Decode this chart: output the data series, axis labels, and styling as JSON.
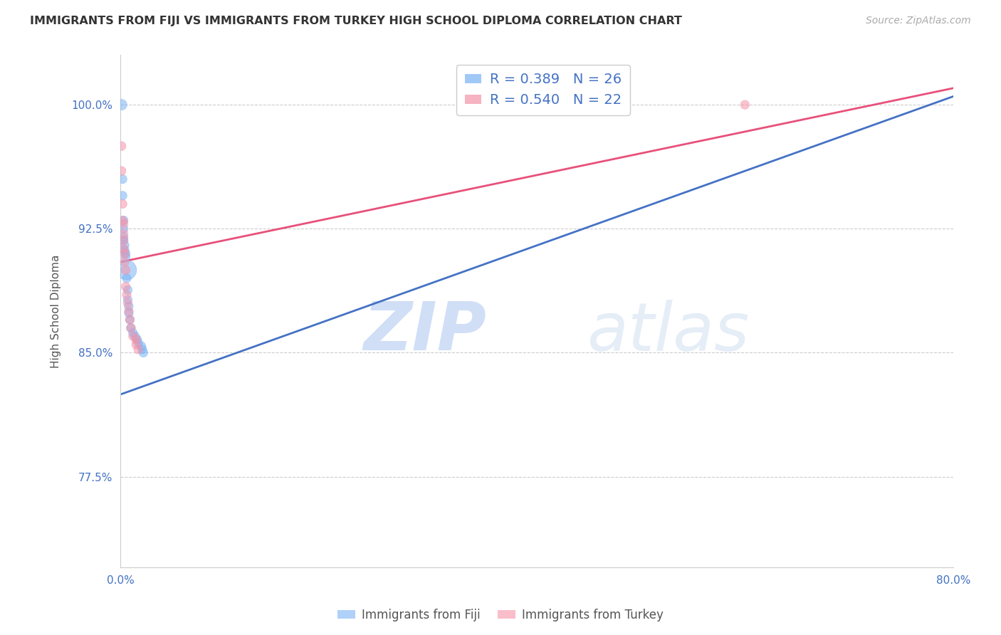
{
  "title": "IMMIGRANTS FROM FIJI VS IMMIGRANTS FROM TURKEY HIGH SCHOOL DIPLOMA CORRELATION CHART",
  "source": "Source: ZipAtlas.com",
  "ylabel": "High School Diploma",
  "xlabel": "",
  "x_min": 0.0,
  "x_max": 0.8,
  "y_min": 0.72,
  "y_max": 1.03,
  "x_ticks": [
    0.0,
    0.1,
    0.2,
    0.3,
    0.4,
    0.5,
    0.6,
    0.7,
    0.8
  ],
  "x_tick_labels": [
    "0.0%",
    "",
    "",
    "",
    "",
    "",
    "",
    "",
    "80.0%"
  ],
  "y_ticks": [
    0.775,
    0.85,
    0.925,
    1.0
  ],
  "y_tick_labels": [
    "77.5%",
    "85.0%",
    "92.5%",
    "100.0%"
  ],
  "watermark_zip": "ZIP",
  "watermark_atlas": "atlas",
  "fiji_color": "#7ab3f5",
  "turkey_color": "#f593a8",
  "fiji_R": 0.389,
  "fiji_N": 26,
  "turkey_R": 0.54,
  "turkey_N": 22,
  "fiji_line_color": "#4472c4",
  "turkey_line_color": "#e8507a",
  "fiji_scatter_x": [
    0.001,
    0.002,
    0.002,
    0.003,
    0.003,
    0.003,
    0.003,
    0.004,
    0.004,
    0.005,
    0.005,
    0.006,
    0.006,
    0.007,
    0.007,
    0.008,
    0.008,
    0.009,
    0.01,
    0.012,
    0.014,
    0.016,
    0.017,
    0.02,
    0.021,
    0.022
  ],
  "fiji_scatter_y": [
    1.0,
    0.955,
    0.945,
    0.93,
    0.925,
    0.92,
    0.918,
    0.915,
    0.912,
    0.91,
    0.908,
    0.9,
    0.895,
    0.888,
    0.882,
    0.878,
    0.874,
    0.87,
    0.865,
    0.862,
    0.86,
    0.858,
    0.856,
    0.854,
    0.852,
    0.85
  ],
  "fiji_scatter_sizes": [
    120,
    80,
    80,
    80,
    80,
    80,
    80,
    80,
    80,
    80,
    80,
    400,
    80,
    80,
    80,
    80,
    80,
    80,
    80,
    80,
    80,
    80,
    80,
    80,
    80,
    80
  ],
  "turkey_scatter_x": [
    0.001,
    0.001,
    0.002,
    0.002,
    0.003,
    0.003,
    0.003,
    0.003,
    0.004,
    0.004,
    0.005,
    0.005,
    0.006,
    0.007,
    0.008,
    0.009,
    0.01,
    0.012,
    0.015,
    0.015,
    0.017,
    0.6
  ],
  "turkey_scatter_y": [
    0.975,
    0.96,
    0.94,
    0.93,
    0.928,
    0.922,
    0.918,
    0.913,
    0.91,
    0.905,
    0.9,
    0.89,
    0.885,
    0.88,
    0.875,
    0.87,
    0.865,
    0.86,
    0.858,
    0.855,
    0.852,
    1.0
  ],
  "turkey_scatter_sizes": [
    80,
    80,
    80,
    80,
    80,
    80,
    80,
    80,
    80,
    80,
    80,
    80,
    80,
    80,
    80,
    80,
    80,
    80,
    80,
    80,
    80,
    80
  ],
  "fiji_line_x": [
    0.001,
    0.8
  ],
  "fiji_line_y": [
    0.825,
    1.005
  ],
  "turkey_line_x": [
    0.001,
    0.8
  ],
  "turkey_line_y": [
    0.905,
    1.01
  ]
}
